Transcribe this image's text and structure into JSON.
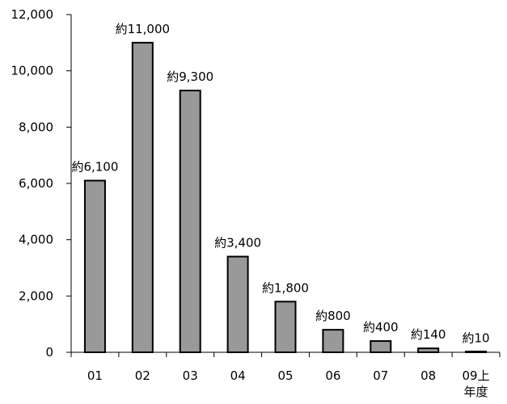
{
  "chart_data": {
    "type": "bar",
    "categories": [
      "01",
      "02",
      "03",
      "04",
      "05",
      "06",
      "07",
      "08",
      "09上年度"
    ],
    "category_lines": [
      [
        "01"
      ],
      [
        "02"
      ],
      [
        "03"
      ],
      [
        "04"
      ],
      [
        "05"
      ],
      [
        "06"
      ],
      [
        "07"
      ],
      [
        "08"
      ],
      [
        "09上",
        "年度"
      ]
    ],
    "values": [
      6100,
      11000,
      9300,
      3400,
      1800,
      800,
      400,
      140,
      10
    ],
    "data_labels": [
      "約6,100",
      "約11,000",
      "約9,300",
      "約3,400",
      "約1,800",
      "約800",
      "約400",
      "約140",
      "約10"
    ],
    "title": "",
    "xlabel": "",
    "ylabel": "",
    "ylim": [
      0,
      12000
    ],
    "y_ticks": [
      0,
      2000,
      4000,
      6000,
      8000,
      10000,
      12000
    ],
    "y_tick_labels": [
      "0",
      "2,000",
      "4,000",
      "6,000",
      "8,000",
      "10,000",
      "12,000"
    ],
    "grid": false,
    "legend": "none",
    "bar_color": "#999999",
    "bar_edge_color": "#000000"
  }
}
